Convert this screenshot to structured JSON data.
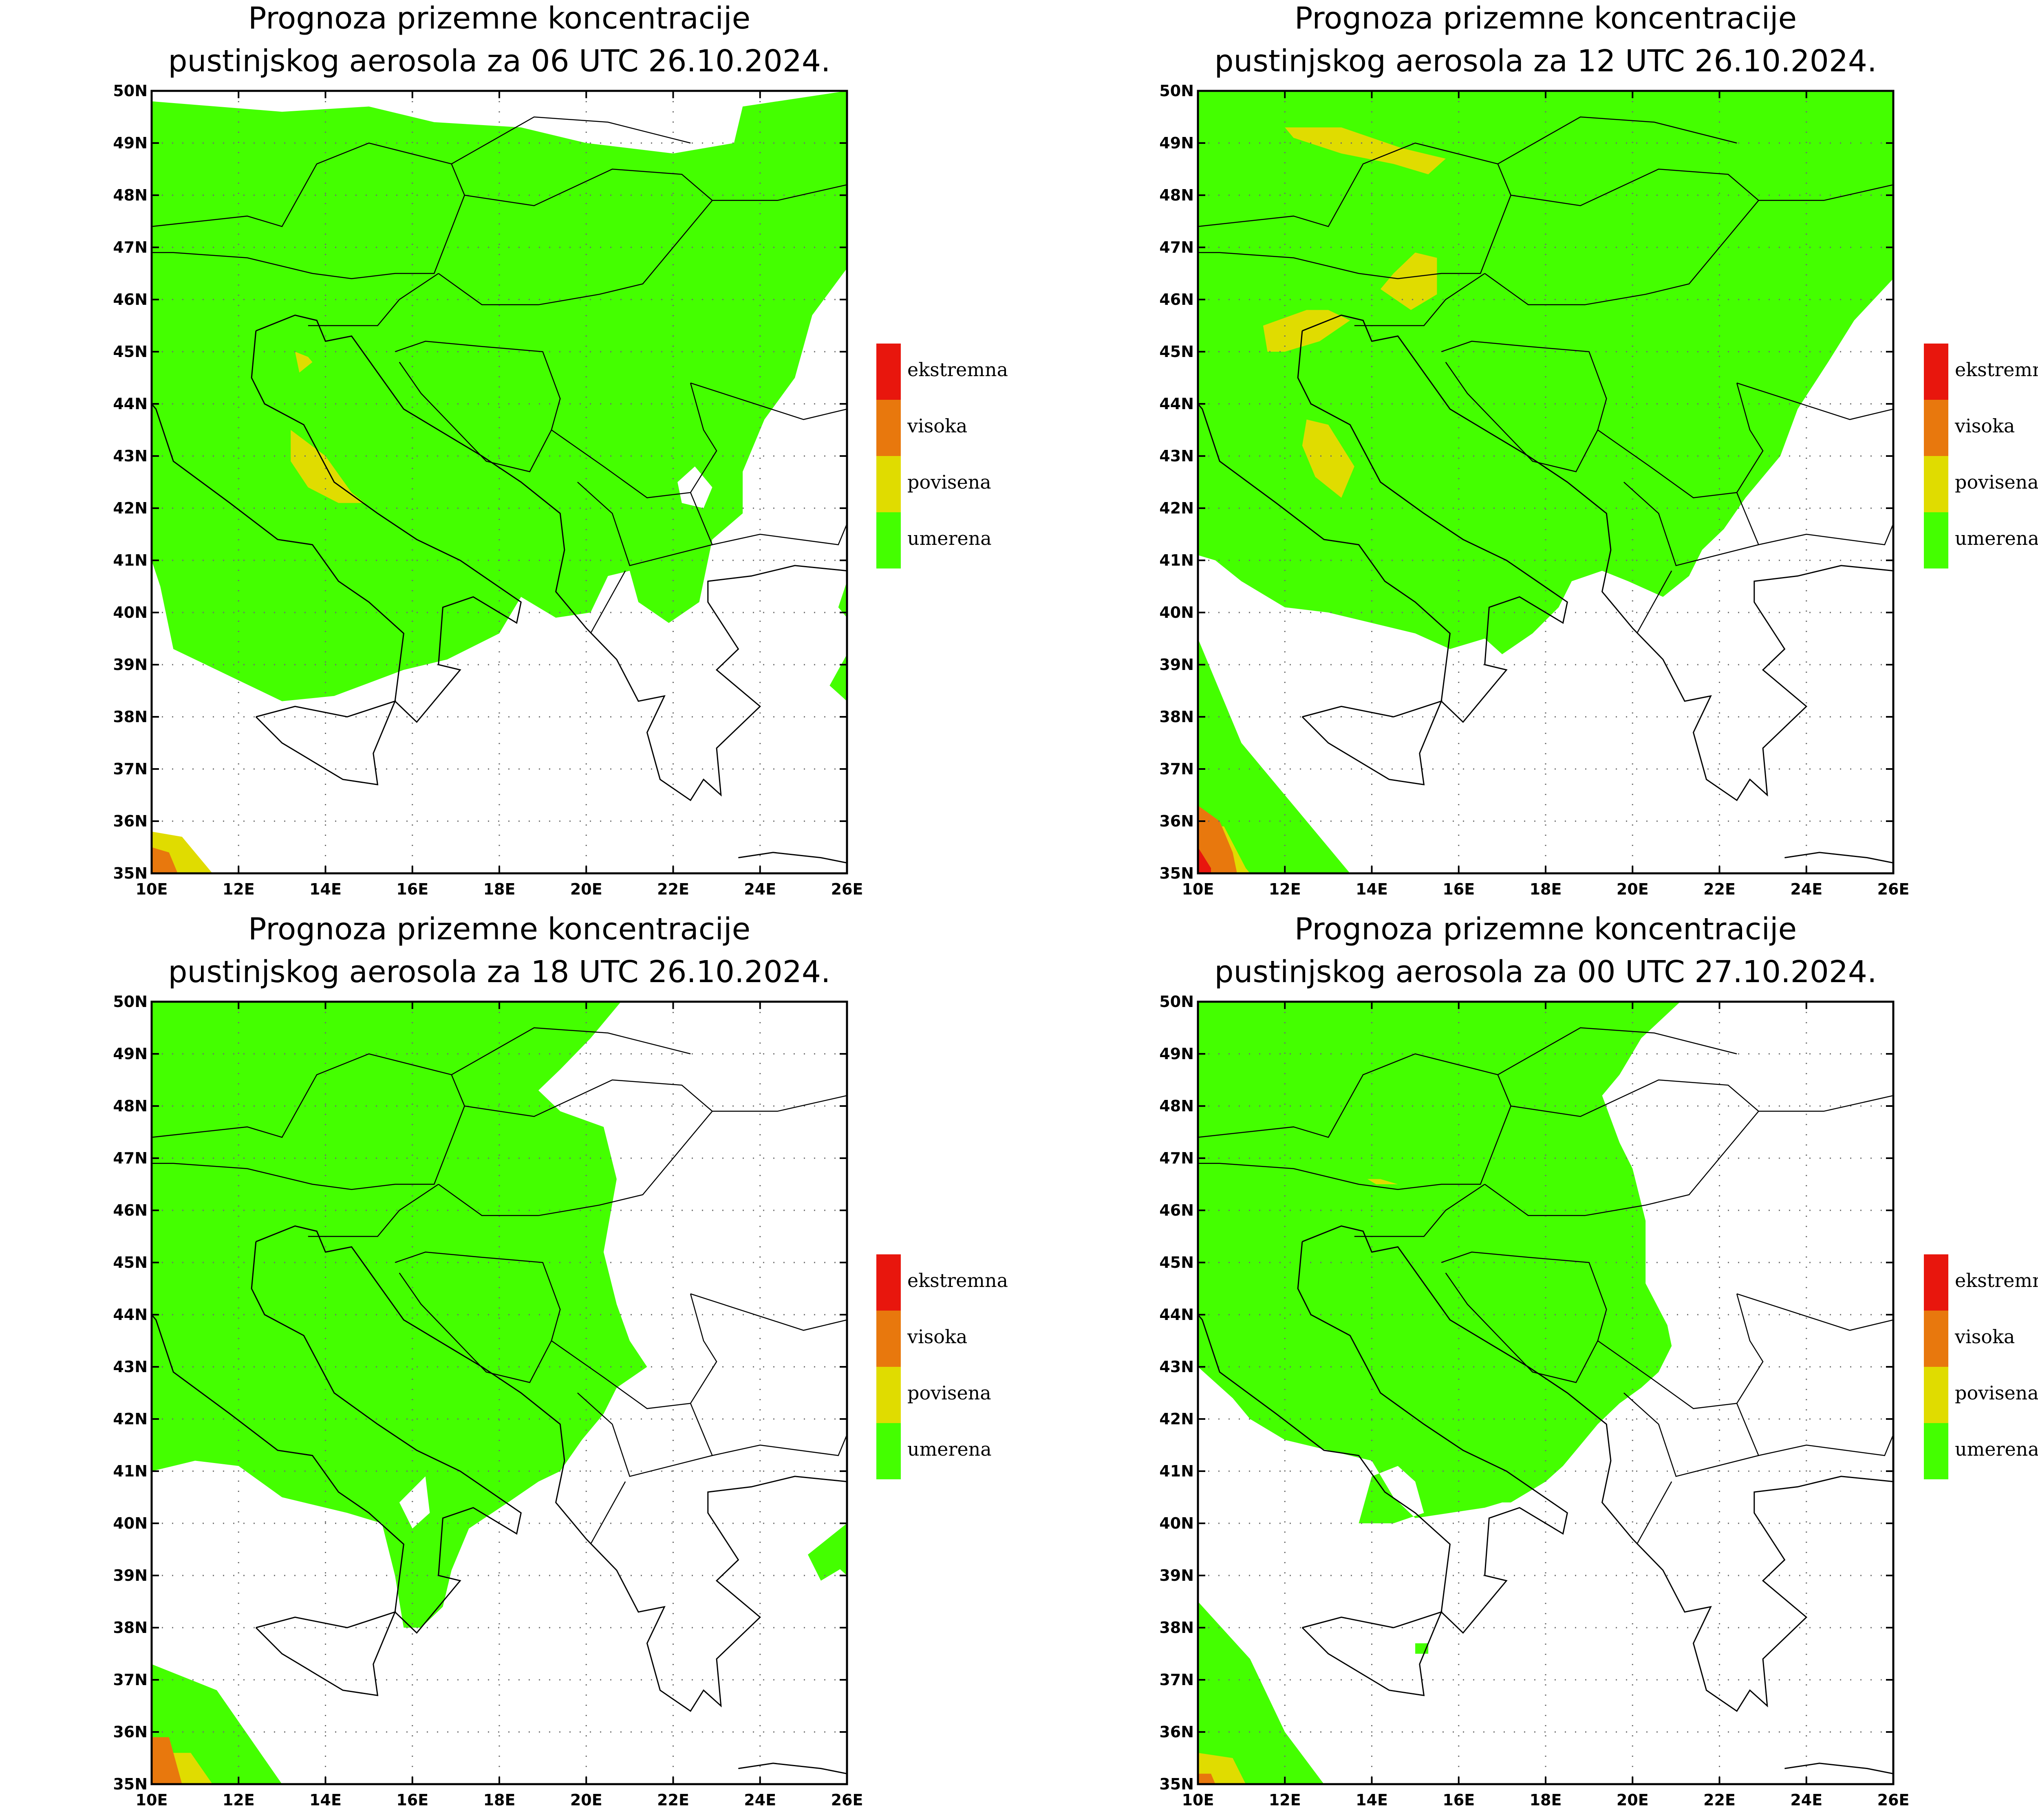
{
  "colors": {
    "ekstremna": "#e8160d",
    "visoka": "#e8780d",
    "povisena": "#e0dc00",
    "umerena": "#44ff00",
    "frame": "#000000",
    "grid": "#6e6e6e",
    "background": "#ffffff"
  },
  "maps": [
    {
      "title_line1": "Prognoza prizemne koncentracije",
      "title_line2": "pustinjskog aerosola za 06 UTC 26.10.2024."
    },
    {
      "title_line1": "Prognoza prizemne koncentracije",
      "title_line2": "pustinjskog aerosola za 12 UTC 26.10.2024."
    },
    {
      "title_line1": "Prognoza prizemne koncentracije",
      "title_line2": "pustinjskog aerosola za 18 UTC 26.10.2024."
    },
    {
      "title_line1": "Prognoza prizemne koncentracije",
      "title_line2": "pustinjskog aerosola za 00 UTC 27.10.2024."
    }
  ],
  "axes": {
    "lon_labels": [
      "10E",
      "12E",
      "14E",
      "16E",
      "18E",
      "20E",
      "22E",
      "24E",
      "26E"
    ],
    "lat_labels": [
      "35N",
      "36N",
      "37N",
      "38N",
      "39N",
      "40N",
      "41N",
      "42N",
      "43N",
      "44N",
      "45N",
      "46N",
      "47N",
      "48N",
      "49N",
      "50N"
    ]
  },
  "legend": [
    {
      "label": "ekstremna",
      "color_key": "ekstremna"
    },
    {
      "label": "visoka",
      "color_key": "visoka"
    },
    {
      "label": "povisena",
      "color_key": "povisena"
    },
    {
      "label": "umerena",
      "color_key": "umerena"
    }
  ]
}
